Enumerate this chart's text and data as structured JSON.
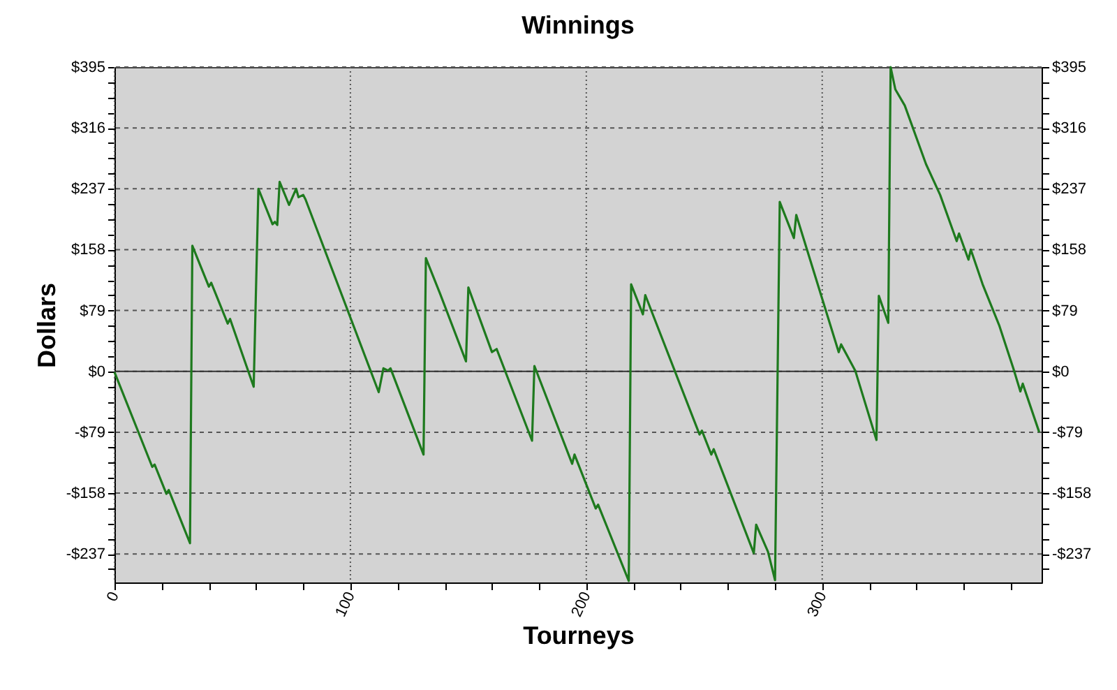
{
  "chart_data": {
    "type": "line",
    "title": "Winnings",
    "xlabel": "Tourneys",
    "ylabel": "Dollars",
    "x": [
      0,
      16,
      17,
      22,
      23,
      32,
      33,
      40,
      41,
      48,
      49,
      59,
      61,
      67,
      68,
      69,
      70,
      74,
      77,
      78,
      80,
      81,
      112,
      114,
      116,
      117,
      131,
      132,
      138,
      149,
      150,
      160,
      162,
      177,
      178,
      194,
      195,
      204,
      205,
      218,
      219,
      224,
      225,
      248,
      249,
      253,
      254,
      271,
      272,
      277,
      280,
      282,
      288,
      289,
      307,
      308,
      314,
      323,
      324,
      328,
      329,
      331,
      335,
      344,
      350,
      357,
      358,
      362,
      363,
      368,
      375,
      381,
      384,
      385,
      392
    ],
    "series": [
      {
        "color": "#1e7a1e",
        "values": [
          -1,
          -124,
          -121,
          -159,
          -154,
          -223,
          163,
          110,
          115,
          62,
          68,
          -20,
          237,
          191,
          194,
          190,
          246,
          216,
          237,
          226,
          229,
          223,
          -27,
          4,
          1,
          4,
          -108,
          147,
          101,
          13,
          109,
          25,
          29,
          -90,
          7,
          -120,
          -108,
          -178,
          -173,
          -272,
          113,
          74,
          99,
          -82,
          -77,
          -108,
          -101,
          -236,
          -199,
          -234,
          -271,
          220,
          173,
          203,
          25,
          35,
          1,
          -89,
          98,
          63,
          395,
          366,
          345,
          269,
          229,
          169,
          179,
          145,
          158,
          113,
          60,
          4,
          -26,
          -16,
          -79
        ]
      }
    ],
    "xlim": [
      0,
      393
    ],
    "xticks": [
      0,
      {
        "value": 20,
        "label": null
      },
      {
        "value": 40,
        "label": null
      },
      {
        "value": 60,
        "label": null
      },
      {
        "value": 80,
        "label": null
      },
      100,
      {
        "value": 120,
        "label": null
      },
      {
        "value": 140,
        "label": null
      },
      {
        "value": 160,
        "label": null
      },
      {
        "value": 180,
        "label": null
      },
      200,
      {
        "value": 220,
        "label": null
      },
      {
        "value": 240,
        "label": null
      },
      {
        "value": 260,
        "label": null
      },
      {
        "value": 280,
        "label": null
      },
      300,
      {
        "value": 320,
        "label": null
      },
      {
        "value": 340,
        "label": null
      },
      {
        "value": 360,
        "label": null
      },
      {
        "value": 380,
        "label": null
      }
    ],
    "ylim": [
      -274,
      395
    ],
    "yticks": [
      {
        "value": -256.75,
        "label": null
      },
      {
        "value": -237,
        "label": "-$237"
      },
      {
        "value": -217.25,
        "label": null
      },
      {
        "value": -197.5,
        "label": null
      },
      {
        "value": -177.75,
        "label": null
      },
      {
        "value": -158,
        "label": "-$158"
      },
      {
        "value": -138.25,
        "label": null
      },
      {
        "value": -118.5,
        "label": null
      },
      {
        "value": -98.75,
        "label": null
      },
      {
        "value": -79,
        "label": "-$79"
      },
      {
        "value": -59.25,
        "label": null
      },
      {
        "value": -39.5,
        "label": null
      },
      {
        "value": -19.75,
        "label": null
      },
      {
        "value": 0,
        "label": "$0"
      },
      {
        "value": 19.75,
        "label": null
      },
      {
        "value": 39.5,
        "label": null
      },
      {
        "value": 59.25,
        "label": null
      },
      {
        "value": 79,
        "label": "$79"
      },
      {
        "value": 98.75,
        "label": null
      },
      {
        "value": 118.5,
        "label": null
      },
      {
        "value": 138.25,
        "label": null
      },
      {
        "value": 158,
        "label": "$158"
      },
      {
        "value": 177.75,
        "label": null
      },
      {
        "value": 197.5,
        "label": null
      },
      {
        "value": 217.25,
        "label": null
      },
      {
        "value": 237,
        "label": "$237"
      },
      {
        "value": 256.75,
        "label": null
      },
      {
        "value": 276.5,
        "label": null
      },
      {
        "value": 296.25,
        "label": null
      },
      {
        "value": 316,
        "label": "$316"
      },
      {
        "value": 335.75,
        "label": null
      },
      {
        "value": 355.5,
        "label": null
      },
      {
        "value": 375.25,
        "label": null
      },
      {
        "value": 395,
        "label": "$395"
      }
    ],
    "y2lim": [
      -274,
      395
    ],
    "y2ticks": [
      {
        "value": -256.75,
        "label": null
      },
      {
        "value": -237,
        "label": "-$237"
      },
      {
        "value": -217.25,
        "label": null
      },
      {
        "value": -197.5,
        "label": null
      },
      {
        "value": -177.75,
        "label": null
      },
      {
        "value": -158,
        "label": "-$158"
      },
      {
        "value": -138.25,
        "label": null
      },
      {
        "value": -118.5,
        "label": null
      },
      {
        "value": -98.75,
        "label": null
      },
      {
        "value": -79,
        "label": "-$79"
      },
      {
        "value": -59.25,
        "label": null
      },
      {
        "value": -39.5,
        "label": null
      },
      {
        "value": -19.75,
        "label": null
      },
      {
        "value": 0,
        "label": "$0"
      },
      {
        "value": 19.75,
        "label": null
      },
      {
        "value": 39.5,
        "label": null
      },
      {
        "value": 59.25,
        "label": null
      },
      {
        "value": 79,
        "label": "$79"
      },
      {
        "value": 98.75,
        "label": null
      },
      {
        "value": 118.5,
        "label": null
      },
      {
        "value": 138.25,
        "label": null
      },
      {
        "value": 158,
        "label": "$158"
      },
      {
        "value": 177.75,
        "label": null
      },
      {
        "value": 197.5,
        "label": null
      },
      {
        "value": 217.25,
        "label": null
      },
      {
        "value": 237,
        "label": "$237"
      },
      {
        "value": 256.75,
        "label": null
      },
      {
        "value": 276.5,
        "label": null
      },
      {
        "value": 296.25,
        "label": null
      },
      {
        "value": 316,
        "label": "$316"
      },
      {
        "value": 335.75,
        "label": null
      },
      {
        "value": 355.5,
        "label": null
      },
      {
        "value": 375.25,
        "label": null
      },
      {
        "value": 395,
        "label": "$395"
      }
    ],
    "ref_lines": [
      {
        "axis": "y",
        "value": 0,
        "color": "#333333",
        "line_style": "solid"
      }
    ],
    "grid": true
  }
}
